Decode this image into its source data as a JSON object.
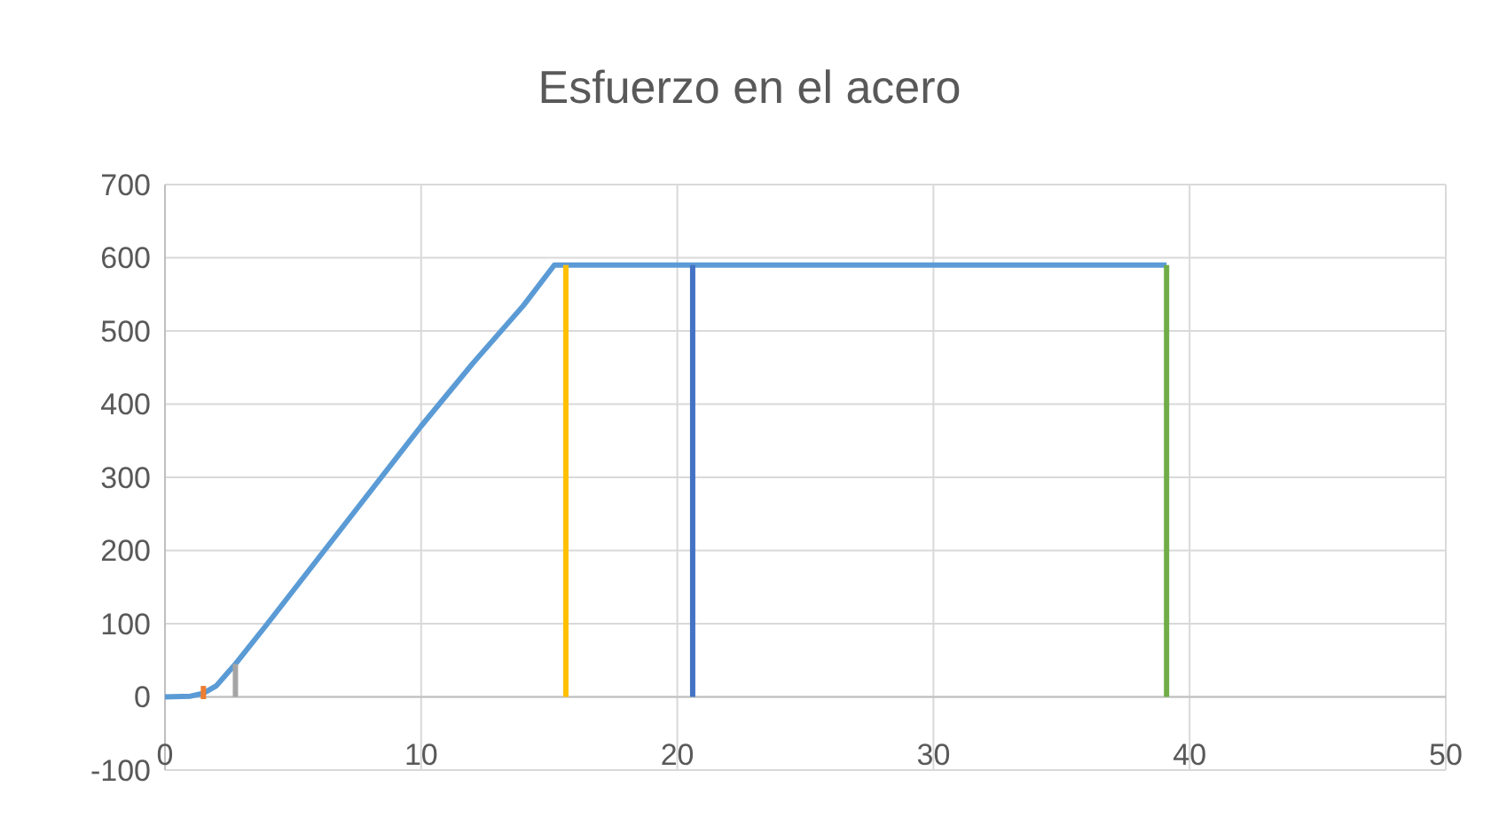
{
  "chart_data": {
    "type": "line",
    "title": "Esfuerzo en el acero",
    "xlim": [
      0,
      50
    ],
    "ylim": [
      -100,
      700
    ],
    "xticks": [
      0,
      10,
      20,
      30,
      40,
      50
    ],
    "yticks": [
      -100,
      0,
      100,
      200,
      300,
      400,
      500,
      600,
      700
    ],
    "grid": true,
    "marker": "none",
    "line_style": "solid",
    "series": [
      {
        "color": "#5b9bd5",
        "x": [
          0,
          1,
          1.5,
          2,
          2.75,
          4,
          6,
          8,
          10,
          12,
          14,
          15.2,
          39.1
        ],
        "values": [
          0,
          1,
          5,
          15,
          45,
          100,
          190,
          280,
          370,
          455,
          535,
          590,
          590
        ]
      },
      {
        "color": "#ed7d31",
        "x": [
          1.5,
          1.5
        ],
        "values": [
          -3,
          15
        ]
      },
      {
        "color": "#a5a5a5",
        "x": [
          2.75,
          2.75
        ],
        "values": [
          0,
          45
        ]
      },
      {
        "color": "#ffc000",
        "x": [
          15.65,
          15.65
        ],
        "values": [
          0,
          590
        ]
      },
      {
        "color": "#4472c4",
        "x": [
          20.6,
          20.6
        ],
        "values": [
          0,
          590
        ]
      },
      {
        "color": "#70ad47",
        "x": [
          39.1,
          39.1
        ],
        "values": [
          0,
          590
        ]
      }
    ]
  }
}
